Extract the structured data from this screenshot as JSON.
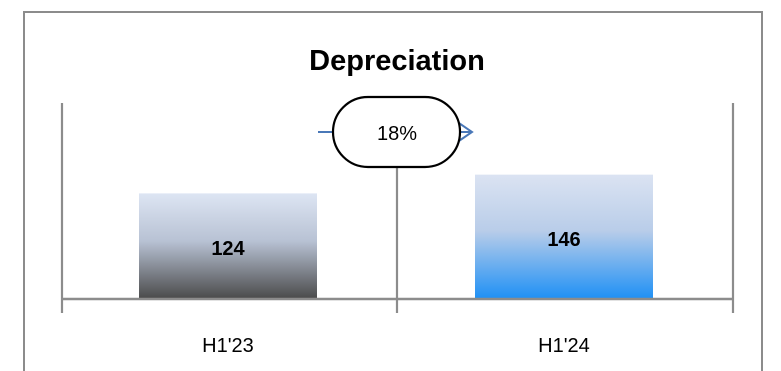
{
  "chart_data": {
    "type": "bar",
    "title": "Depreciation",
    "categories": [
      "H1'23",
      "H1'24"
    ],
    "values": [
      124,
      146
    ],
    "data_labels": [
      "124",
      "146"
    ],
    "annotation": {
      "label": "18%",
      "from": "H1'23",
      "to": "H1'24"
    },
    "bar_gradients": [
      {
        "top": "#dde5f3",
        "bottom": "#4a4a4a"
      },
      {
        "top": "#dbe3f2",
        "bottom": "#1e90f5"
      }
    ],
    "colors": {
      "frame": "#8c8c8c",
      "axis": "#8c8c8c",
      "arrow": "#4a78b8",
      "text": "#000000"
    },
    "legend": "none",
    "grid": false
  }
}
